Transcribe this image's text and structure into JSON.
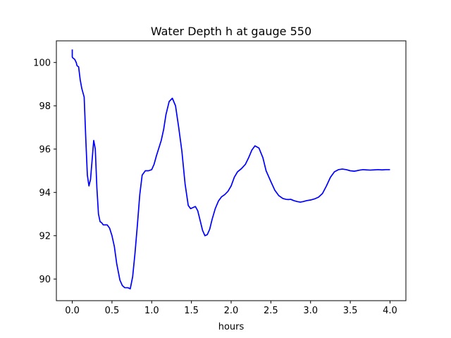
{
  "chart_data": {
    "type": "line",
    "title": "Water Depth h at gauge 550",
    "xlabel": "hours",
    "ylabel": "",
    "xlim": [
      -0.2,
      4.2
    ],
    "ylim": [
      89.0,
      101.0
    ],
    "xticks": [
      0.0,
      0.5,
      1.0,
      1.5,
      2.0,
      2.5,
      3.0,
      3.5,
      4.0
    ],
    "xtick_labels": [
      "0.0",
      "0.5",
      "1.0",
      "1.5",
      "2.0",
      "2.5",
      "3.0",
      "3.5",
      "4.0"
    ],
    "yticks": [
      90,
      92,
      94,
      96,
      98,
      100
    ],
    "ytick_labels": [
      "90",
      "92",
      "94",
      "96",
      "98",
      "100"
    ],
    "grid": false,
    "series": [
      {
        "color": "#0000ff",
        "x": [
          0.0,
          0.0,
          0.01,
          0.03,
          0.05,
          0.06,
          0.08,
          0.1,
          0.12,
          0.15,
          0.17,
          0.19,
          0.21,
          0.23,
          0.25,
          0.27,
          0.29,
          0.31,
          0.33,
          0.35,
          0.37,
          0.39,
          0.41,
          0.44,
          0.47,
          0.5,
          0.53,
          0.56,
          0.6,
          0.63,
          0.66,
          0.7,
          0.73,
          0.76,
          0.79,
          0.82,
          0.85,
          0.88,
          0.92,
          0.96,
          1.0,
          1.03,
          1.06,
          1.09,
          1.12,
          1.15,
          1.18,
          1.22,
          1.26,
          1.3,
          1.34,
          1.38,
          1.42,
          1.46,
          1.49,
          1.52,
          1.55,
          1.58,
          1.61,
          1.64,
          1.67,
          1.7,
          1.73,
          1.76,
          1.8,
          1.84,
          1.88,
          1.92,
          1.96,
          2.0,
          2.04,
          2.08,
          2.13,
          2.18,
          2.22,
          2.26,
          2.3,
          2.35,
          2.4,
          2.44,
          2.5,
          2.55,
          2.6,
          2.65,
          2.69,
          2.72,
          2.75,
          2.79,
          2.83,
          2.87,
          2.91,
          2.95,
          3.0,
          3.05,
          3.1,
          3.15,
          3.2,
          3.25,
          3.3,
          3.35,
          3.4,
          3.45,
          3.5,
          3.55,
          3.58,
          3.62,
          3.66,
          3.7,
          3.75,
          3.8,
          3.85,
          3.9,
          3.95,
          4.0
        ],
        "y": [
          100.6,
          100.25,
          100.2,
          100.15,
          100.0,
          99.85,
          99.8,
          99.2,
          98.8,
          98.4,
          96.5,
          94.8,
          94.3,
          94.6,
          95.5,
          96.4,
          96.0,
          94.2,
          93.0,
          92.65,
          92.6,
          92.5,
          92.5,
          92.5,
          92.35,
          92.0,
          91.5,
          90.7,
          89.95,
          89.7,
          89.6,
          89.6,
          89.55,
          90.1,
          91.2,
          92.5,
          93.9,
          94.8,
          95.0,
          95.0,
          95.05,
          95.3,
          95.7,
          96.05,
          96.4,
          96.9,
          97.6,
          98.2,
          98.35,
          98.0,
          97.0,
          95.9,
          94.4,
          93.4,
          93.25,
          93.3,
          93.35,
          93.15,
          92.7,
          92.25,
          92.0,
          92.05,
          92.3,
          92.75,
          93.25,
          93.6,
          93.8,
          93.9,
          94.05,
          94.3,
          94.7,
          94.95,
          95.1,
          95.3,
          95.6,
          95.95,
          96.15,
          96.05,
          95.6,
          95.0,
          94.5,
          94.1,
          93.85,
          93.72,
          93.68,
          93.67,
          93.68,
          93.62,
          93.58,
          93.55,
          93.58,
          93.62,
          93.65,
          93.7,
          93.78,
          93.95,
          94.3,
          94.7,
          94.95,
          95.05,
          95.08,
          95.05,
          95.0,
          94.98,
          95.0,
          95.03,
          95.05,
          95.04,
          95.03,
          95.04,
          95.05,
          95.04,
          95.05,
          95.05
        ]
      }
    ]
  }
}
